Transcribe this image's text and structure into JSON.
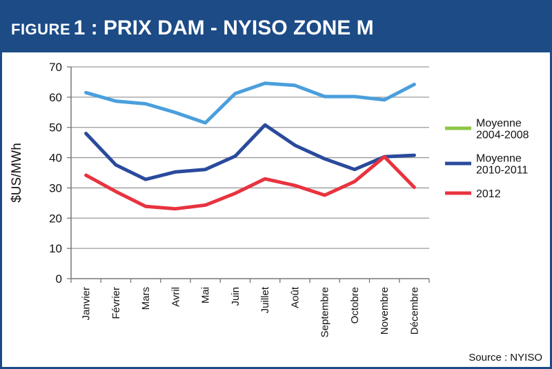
{
  "header": {
    "figure_word": "FIGURE",
    "figure_number": "1",
    "title_rest": " : PRIX DAM - NYISO ZONE M"
  },
  "source_text": "Source : NYISO",
  "chart_data": {
    "type": "line",
    "title": "FIGURE 1 : PRIX DAM - NYISO ZONE M",
    "xlabel": "",
    "ylabel": "$US/MWh",
    "ylim": [
      0,
      70
    ],
    "yticks": [
      0,
      10,
      20,
      30,
      40,
      50,
      60,
      70
    ],
    "grid": true,
    "legend_position": "right",
    "categories": [
      "Janvier",
      "Février",
      "Mars",
      "Avril",
      "Mai",
      "Juin",
      "Juillet",
      "Août",
      "Septembre",
      "Octobre",
      "Novembre",
      "Décembre"
    ],
    "series": [
      {
        "name": "Moyenne 2004-2008",
        "legend_lines": [
          "Moyenne",
          "2004-2008"
        ],
        "color": "#4a9fdc",
        "legend_color": "#8dc646",
        "values": [
          61.5,
          58.7,
          57.8,
          54.9,
          51.5,
          61.2,
          64.6,
          63.9,
          60.2,
          60.2,
          59.1,
          64.2
        ]
      },
      {
        "name": "Moyenne 2010-2011",
        "legend_lines": [
          "Moyenne",
          "2010-2011"
        ],
        "color": "#2a4a9c",
        "legend_color": "#2a4a9c",
        "values": [
          48.0,
          37.6,
          32.8,
          35.3,
          36.1,
          40.5,
          50.8,
          44.1,
          39.6,
          36.1,
          40.3,
          40.8
        ]
      },
      {
        "name": "2012",
        "legend_lines": [
          "2012"
        ],
        "color": "#e8333f",
        "legend_color": "#e8333f",
        "values": [
          34.2,
          28.8,
          23.9,
          23.1,
          24.3,
          28.2,
          33.0,
          30.8,
          27.6,
          32.1,
          40.3,
          30.2
        ]
      }
    ]
  }
}
